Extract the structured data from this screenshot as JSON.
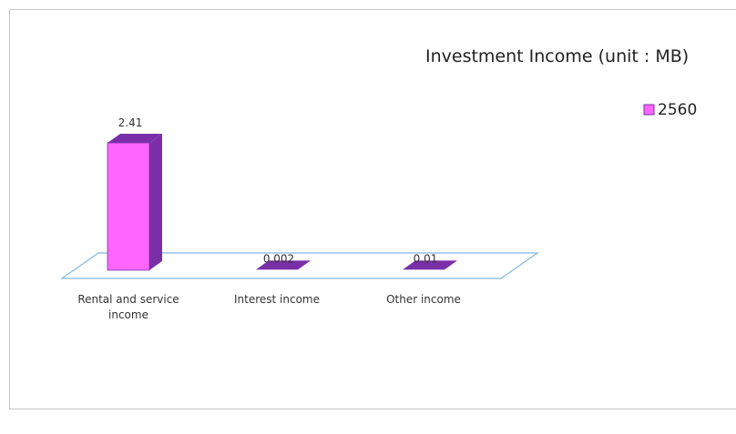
{
  "chart_data": {
    "type": "bar",
    "title": "Investment Income (unit : MB)",
    "categories": [
      "Rental and service income",
      "Interest income",
      "Other income"
    ],
    "category_lines": [
      [
        "Rental and service",
        "income"
      ],
      [
        "Interest income"
      ],
      [
        "Other income"
      ]
    ],
    "series": [
      {
        "name": "2560",
        "values": [
          2.41,
          0.002,
          0.01
        ],
        "labels": [
          "2.41",
          "0.002",
          "0.01"
        ]
      }
    ],
    "ylim": [
      0,
      2.5
    ],
    "grid": false,
    "legend_position": "top-right",
    "colors": {
      "bar_front": "#ff66ff",
      "bar_top": "#7a2fa8",
      "bar_side": "#7a2fa8",
      "floor_stroke": "#7fb8e6",
      "legend_swatch": "#ff66ff"
    }
  }
}
